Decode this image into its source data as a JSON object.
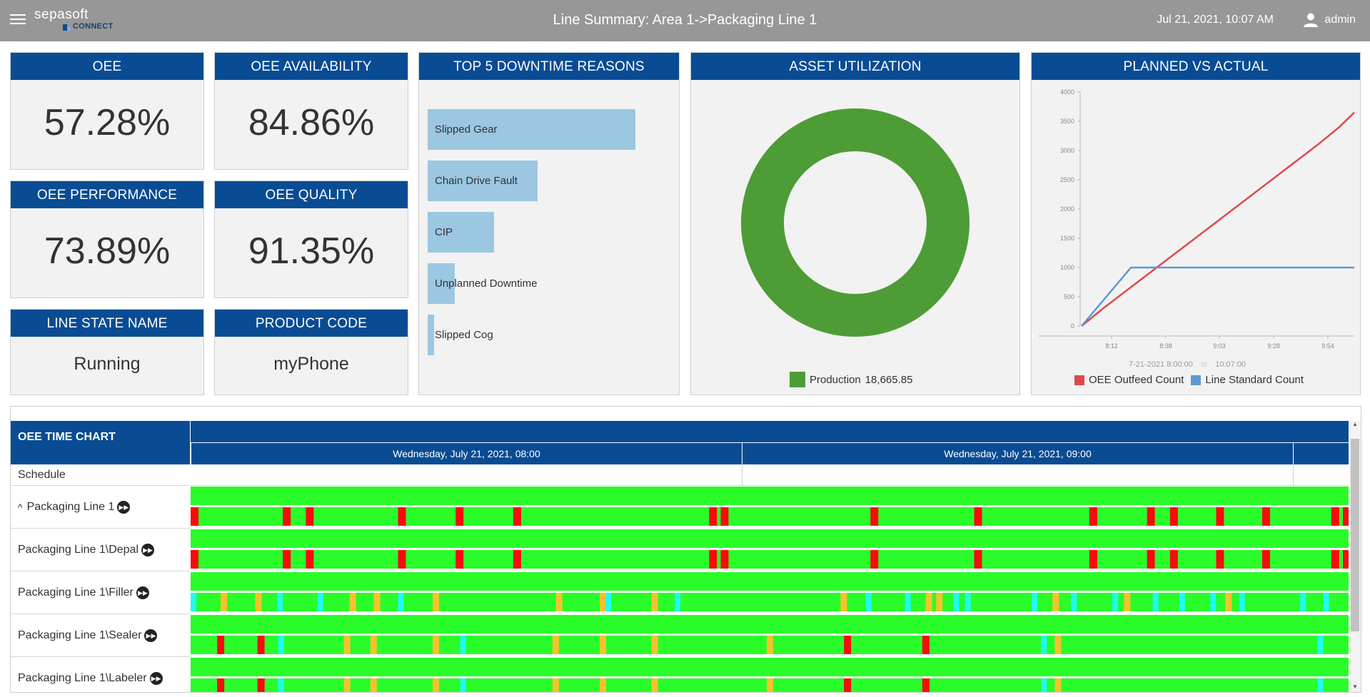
{
  "header": {
    "logo_brand": "sepasoft",
    "logo_sub": "CONNECT",
    "title": "Line Summary: Area 1->Packaging Line 1",
    "datetime": "Jul 21, 2021, 10:07 AM",
    "user": "admin"
  },
  "kpis": {
    "oee": {
      "title": "OEE",
      "value": "57.28%"
    },
    "availability": {
      "title": "OEE AVAILABILITY",
      "value": "84.86%"
    },
    "performance": {
      "title": "OEE PERFORMANCE",
      "value": "73.89%"
    },
    "quality": {
      "title": "OEE QUALITY",
      "value": "91.35%"
    },
    "line_state": {
      "title": "LINE STATE NAME",
      "value": "Running"
    },
    "product_code": {
      "title": "PRODUCT CODE",
      "value": "myPhone"
    }
  },
  "downtime": {
    "title": "TOP 5 DOWNTIME REASONS",
    "items": [
      {
        "label": "Slipped Gear",
        "value": 100
      },
      {
        "label": "Chain Drive Fault",
        "value": 53
      },
      {
        "label": "CIP",
        "value": 32
      },
      {
        "label": "Unplanned Downtime",
        "value": 13
      },
      {
        "label": "Slipped Cog",
        "value": 3
      }
    ]
  },
  "asset_utilization": {
    "title": "ASSET UTILIZATION",
    "legend_label": "Production",
    "legend_value": "18,665.85",
    "color": "#4e9c36"
  },
  "planned_vs_actual": {
    "title": "PLANNED VS ACTUAL",
    "range_start": "7-21-2021   8:00:00",
    "range_sep": "to",
    "range_end": "10:07:00"
  },
  "chart_data": {
    "type": "line",
    "title": "PLANNED VS ACTUAL",
    "xlabel": "",
    "ylabel": "",
    "x_ticks": [
      "8:12",
      "8:38",
      "9:03",
      "9:28",
      "9:54"
    ],
    "y_ticks": [
      0,
      500,
      1000,
      1500,
      2000,
      2500,
      3000,
      3500,
      4000
    ],
    "xlim_minutes": [
      0,
      127
    ],
    "ylim": [
      0,
      4000
    ],
    "series": [
      {
        "name": "OEE Outfeed Count",
        "color": "#e0484f",
        "points": [
          [
            0,
            0
          ],
          [
            10,
            300
          ],
          [
            20,
            580
          ],
          [
            30,
            860
          ],
          [
            40,
            1140
          ],
          [
            50,
            1420
          ],
          [
            60,
            1700
          ],
          [
            70,
            1980
          ],
          [
            80,
            2260
          ],
          [
            90,
            2540
          ],
          [
            100,
            2820
          ],
          [
            110,
            3100
          ],
          [
            120,
            3400
          ],
          [
            127,
            3650
          ]
        ]
      },
      {
        "name": "Line Standard Count",
        "color": "#5b9bd5",
        "points": [
          [
            0,
            0
          ],
          [
            23,
            1000
          ],
          [
            127,
            1000
          ]
        ]
      }
    ]
  },
  "timechart": {
    "title": "OEE TIME CHART",
    "dates": [
      "Wednesday, July 21, 2021, 08:00",
      "Wednesday, July 21, 2021, 09:00"
    ],
    "rows": [
      {
        "label": "Schedule"
      },
      {
        "label": "Packaging Line 1",
        "expander": "^"
      },
      {
        "label": "Packaging Line 1\\Depal"
      },
      {
        "label": "Packaging Line 1\\Filler"
      },
      {
        "label": "Packaging Line 1\\Sealer"
      },
      {
        "label": "Packaging Line 1\\Labeler"
      }
    ],
    "colors": {
      "running": "#2afc2a",
      "down": "#fa0a0a",
      "blocked": "#f7c22a",
      "starved": "#1efcf2"
    },
    "tracks": [
      {
        "red": [
          0,
          8,
          10,
          18,
          28,
          23,
          45,
          46,
          59,
          68,
          78,
          83,
          85,
          89,
          93,
          99,
          100
        ],
        "orange": [],
        "cyan": []
      },
      {
        "red": [
          0,
          8,
          10,
          18,
          28,
          23,
          45,
          46,
          59,
          68,
          78,
          83,
          85,
          89,
          93,
          99,
          100
        ],
        "orange": [],
        "cyan": []
      },
      {
        "red": [],
        "orange": [
          2.6,
          5.6,
          13.8,
          15.9,
          21,
          31.7,
          35.5,
          40,
          56.4,
          63.8,
          64.7,
          74.8,
          81,
          89.8
        ],
        "cyan": [
          0,
          7.5,
          11,
          18,
          36,
          42,
          58.6,
          62,
          66.2,
          67.2,
          73,
          76.4,
          80,
          83.5,
          85.8,
          88.5,
          91,
          96.3,
          98.3
        ]
      },
      {
        "red": [
          2.3,
          5.8,
          56.7,
          63.5
        ],
        "orange": [
          13.3,
          15.6,
          21,
          31.4,
          35.5,
          40,
          50,
          75
        ],
        "cyan": [
          7.6,
          23.4,
          73.8,
          97.8
        ]
      }
    ]
  }
}
